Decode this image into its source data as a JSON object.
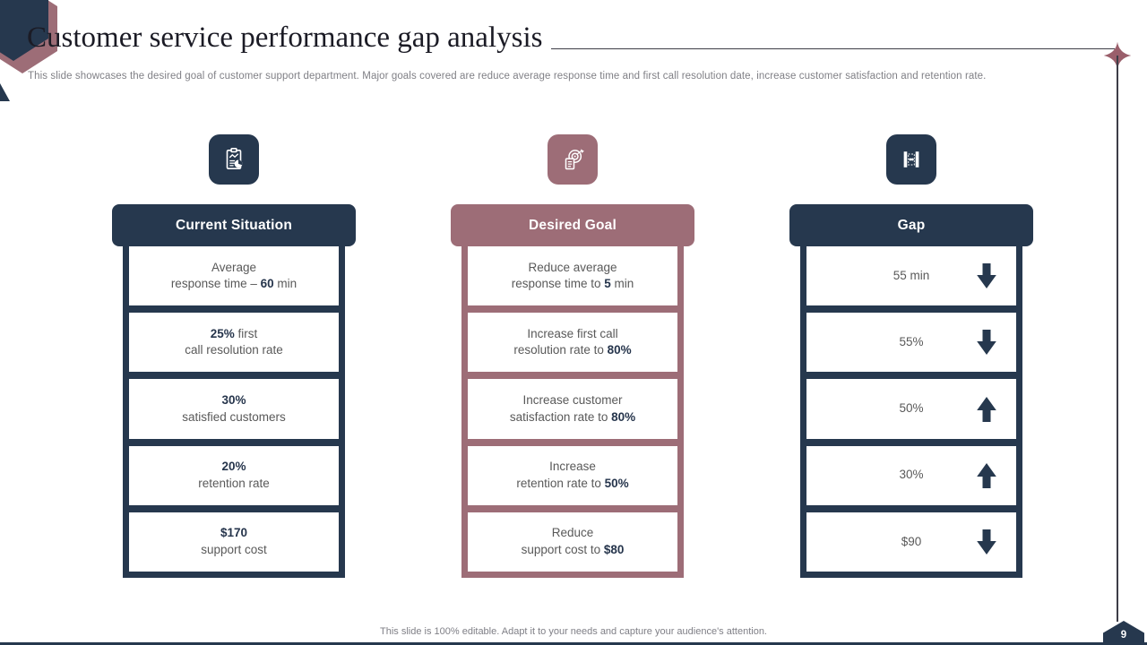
{
  "slide": {
    "title": "Customer service performance gap analysis",
    "subtitle": "This slide showcases the desired goal of customer support department. Major goals covered are reduce average response time and first call resolution date, increase customer satisfaction and retention rate.",
    "footer": "This slide is 100% editable. Adapt it to your needs and capture your audience's attention.",
    "page_number": "9"
  },
  "colors": {
    "navy": "#26384e",
    "rose": "#9d6d77",
    "line": "#3d3d47",
    "text_gray": "#595959",
    "bold_navy": "#26354c"
  },
  "columns": [
    {
      "id": "current-situation",
      "theme": "navy",
      "icon": "clipboard-chart-icon",
      "header": "Current Situation",
      "cells": [
        {
          "lines": [
            [
              {
                "t": "Average"
              }
            ],
            [
              {
                "t": "response time – "
              },
              {
                "t": "60",
                "b": true
              },
              {
                "t": " min"
              }
            ]
          ]
        },
        {
          "lines": [
            [
              {
                "t": "25%",
                "b": true
              },
              {
                "t": " first"
              }
            ],
            [
              {
                "t": "call resolution rate"
              }
            ]
          ]
        },
        {
          "lines": [
            [
              {
                "t": "30%",
                "b": true
              }
            ],
            [
              {
                "t": "satisfied customers"
              }
            ]
          ]
        },
        {
          "lines": [
            [
              {
                "t": "20%",
                "b": true
              }
            ],
            [
              {
                "t": "retention rate"
              }
            ]
          ]
        },
        {
          "lines": [
            [
              {
                "t": "$170",
                "b": true
              }
            ],
            [
              {
                "t": "support cost"
              }
            ]
          ]
        }
      ]
    },
    {
      "id": "desired-goal",
      "theme": "rose",
      "icon": "target-goal-icon",
      "header": "Desired Goal",
      "cells": [
        {
          "lines": [
            [
              {
                "t": "Reduce average"
              }
            ],
            [
              {
                "t": "response time to "
              },
              {
                "t": "5",
                "b": true
              },
              {
                "t": " min"
              }
            ]
          ]
        },
        {
          "lines": [
            [
              {
                "t": "Increase first call"
              }
            ],
            [
              {
                "t": "resolution rate to "
              },
              {
                "t": "80%",
                "b": true
              }
            ]
          ]
        },
        {
          "lines": [
            [
              {
                "t": "Increase customer"
              }
            ],
            [
              {
                "t": "satisfaction rate to "
              },
              {
                "t": "80%",
                "b": true
              }
            ]
          ]
        },
        {
          "lines": [
            [
              {
                "t": "Increase"
              }
            ],
            [
              {
                "t": "retention rate to "
              },
              {
                "t": "50%",
                "b": true
              }
            ]
          ]
        },
        {
          "lines": [
            [
              {
                "t": "Reduce"
              }
            ],
            [
              {
                "t": "support cost to "
              },
              {
                "t": "$80",
                "b": true
              }
            ]
          ]
        }
      ]
    },
    {
      "id": "gap",
      "theme": "navy",
      "icon": "gap-icon",
      "header": "Gap",
      "cells": [
        {
          "value": "55 min",
          "arrow": "down"
        },
        {
          "value": "55%",
          "arrow": "down"
        },
        {
          "value": "50%",
          "arrow": "up"
        },
        {
          "value": "30%",
          "arrow": "up"
        },
        {
          "value": "$90",
          "arrow": "down"
        }
      ]
    }
  ]
}
